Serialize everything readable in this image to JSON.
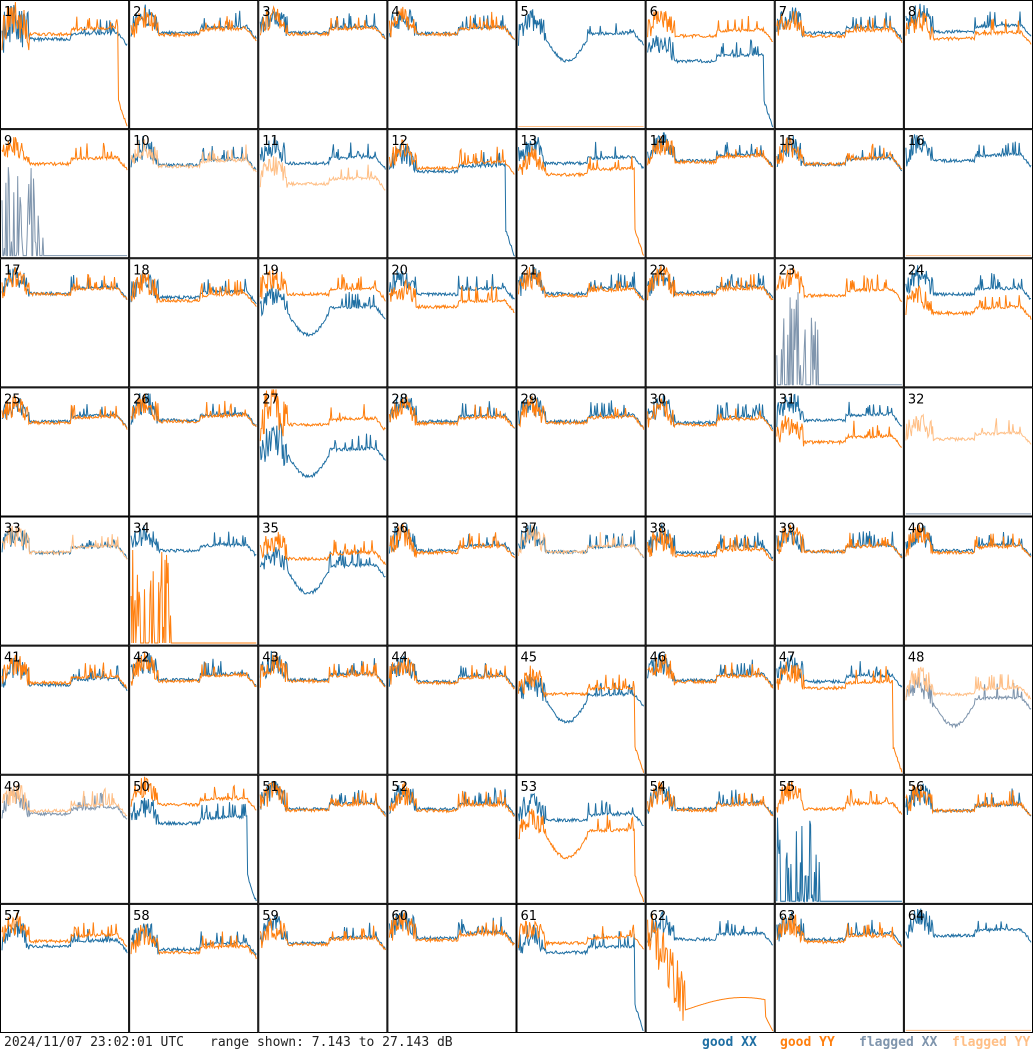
{
  "footer": {
    "timestamp": "2024/11/07 23:02:01 UTC",
    "range": "range shown: 7.143 to 27.143 dB"
  },
  "legend": [
    {
      "key": "good_xx",
      "label": "good XX",
      "color": "#1f6fa3"
    },
    {
      "key": "good_yy",
      "label": "good YY",
      "color": "#ff7f0e"
    },
    {
      "key": "flagged_xx",
      "label": "flagged XX",
      "color": "#7f95ad"
    },
    {
      "key": "flagged_yy",
      "label": "flagged YY",
      "color": "#ffbf86"
    }
  ],
  "chart_data": {
    "type": "line",
    "grid": {
      "rows": 8,
      "cols": 8
    },
    "ylim": [
      7.143,
      27.143
    ],
    "yunit": "dB",
    "panels": [
      {
        "label": "1",
        "xx": "good",
        "yy": "good",
        "xx_level": 22.0,
        "yy_level": 22.8,
        "yy_drop": true,
        "xx_drop": false,
        "front_noise": "high"
      },
      {
        "label": "2",
        "xx": "good",
        "yy": "good",
        "xx_level": 23.0,
        "yy_level": 22.7
      },
      {
        "label": "3",
        "xx": "good",
        "yy": "good",
        "xx_level": 23.0,
        "yy_level": 22.8
      },
      {
        "label": "4",
        "xx": "good",
        "yy": "good",
        "xx_level": 22.9,
        "yy_level": 22.8
      },
      {
        "label": "5",
        "xx": "good",
        "yy": "flagged",
        "xx_level": 22.0,
        "yy_level": 7.2,
        "xx_dip": true
      },
      {
        "label": "6",
        "xx": "good",
        "yy": "good",
        "xx_level": 18.5,
        "yy_level": 22.5,
        "xx_drop": true
      },
      {
        "label": "7",
        "xx": "good",
        "yy": "good",
        "xx_level": 23.0,
        "yy_level": 22.5
      },
      {
        "label": "8",
        "xx": "good",
        "yy": "good",
        "xx_level": 23.2,
        "yy_level": 22.1
      },
      {
        "label": "9",
        "xx": "flagged",
        "yy": "good",
        "xx_level": 7.5,
        "yy_level": 22.7,
        "xx_spikes": true
      },
      {
        "label": "10",
        "xx": "good",
        "yy": "flagged",
        "xx_level": 22.5,
        "yy_level": 22.3
      },
      {
        "label": "11",
        "xx": "good",
        "yy": "flagged",
        "xx_level": 22.8,
        "yy_level": 19.5
      },
      {
        "label": "12",
        "xx": "good",
        "yy": "good",
        "xx_level": 21.5,
        "yy_level": 22.0,
        "xx_drop": true
      },
      {
        "label": "13",
        "xx": "good",
        "yy": "good",
        "xx_level": 22.8,
        "yy_level": 21.0,
        "yy_drop": true
      },
      {
        "label": "14",
        "xx": "good",
        "yy": "good",
        "xx_level": 23.2,
        "yy_level": 23.0
      },
      {
        "label": "15",
        "xx": "good",
        "yy": "good",
        "xx_level": 22.6,
        "yy_level": 22.7
      },
      {
        "label": "16",
        "xx": "good",
        "yy": "flagged",
        "xx_level": 23.2,
        "yy_level": 7.2
      },
      {
        "label": "17",
        "xx": "good",
        "yy": "good",
        "xx_level": 22.6,
        "yy_level": 22.5
      },
      {
        "label": "18",
        "xx": "good",
        "yy": "good",
        "xx_level": 22.0,
        "yy_level": 21.5
      },
      {
        "label": "19",
        "xx": "good",
        "yy": "good",
        "xx_level": 19.5,
        "yy_level": 22.5,
        "xx_dip": true
      },
      {
        "label": "20",
        "xx": "good",
        "yy": "good",
        "xx_level": 22.5,
        "yy_level": 20.5
      },
      {
        "label": "21",
        "xx": "good",
        "yy": "good",
        "xx_level": 22.6,
        "yy_level": 22.3
      },
      {
        "label": "22",
        "xx": "good",
        "yy": "good",
        "xx_level": 22.8,
        "yy_level": 22.5
      },
      {
        "label": "23",
        "xx": "flagged",
        "yy": "good",
        "xx_level": 8.5,
        "yy_level": 22.3,
        "xx_spikes": true
      },
      {
        "label": "24",
        "xx": "good",
        "yy": "good",
        "xx_level": 22.5,
        "yy_level": 19.5
      },
      {
        "label": "25",
        "xx": "good",
        "yy": "good",
        "xx_level": 22.8,
        "yy_level": 22.6
      },
      {
        "label": "26",
        "xx": "good",
        "yy": "good",
        "xx_level": 23.0,
        "yy_level": 22.8
      },
      {
        "label": "27",
        "xx": "good",
        "yy": "good",
        "xx_level": 17.5,
        "yy_level": 22.3,
        "xx_dip": true,
        "front_noise": "high"
      },
      {
        "label": "28",
        "xx": "good",
        "yy": "good",
        "xx_level": 22.8,
        "yy_level": 22.5
      },
      {
        "label": "29",
        "xx": "good",
        "yy": "good",
        "xx_level": 22.8,
        "yy_level": 22.6
      },
      {
        "label": "30",
        "xx": "good",
        "yy": "good",
        "xx_level": 22.6,
        "yy_level": 22.3
      },
      {
        "label": "31",
        "xx": "good",
        "yy": "good",
        "xx_level": 23.0,
        "yy_level": 19.5
      },
      {
        "label": "32",
        "xx": "flagged",
        "yy": "flagged",
        "xx_level": 7.2,
        "yy_level": 20.0
      },
      {
        "label": "33",
        "xx": "good",
        "yy": "flagged",
        "xx_level": 22.5,
        "yy_level": 22.5
      },
      {
        "label": "34",
        "xx": "good",
        "yy": "good",
        "xx_level": 22.8,
        "yy_level": 7.5,
        "yy_spikes": true
      },
      {
        "label": "35",
        "xx": "good",
        "yy": "good",
        "xx_level": 19.5,
        "yy_level": 21.5,
        "xx_dip": true
      },
      {
        "label": "36",
        "xx": "good",
        "yy": "good",
        "xx_level": 22.8,
        "yy_level": 22.5
      },
      {
        "label": "37",
        "xx": "good",
        "yy": "flagged",
        "xx_level": 22.6,
        "yy_level": 22.6
      },
      {
        "label": "38",
        "xx": "good",
        "yy": "good",
        "xx_level": 22.5,
        "yy_level": 22.0
      },
      {
        "label": "39",
        "xx": "good",
        "yy": "good",
        "xx_level": 22.7,
        "yy_level": 22.6
      },
      {
        "label": "40",
        "xx": "good",
        "yy": "good",
        "xx_level": 22.8,
        "yy_level": 22.5
      },
      {
        "label": "41",
        "xx": "good",
        "yy": "good",
        "xx_level": 22.0,
        "yy_level": 22.3
      },
      {
        "label": "42",
        "xx": "good",
        "yy": "good",
        "xx_level": 22.8,
        "yy_level": 22.6
      },
      {
        "label": "43",
        "xx": "good",
        "yy": "good",
        "xx_level": 22.8,
        "yy_level": 22.6
      },
      {
        "label": "44",
        "xx": "good",
        "yy": "good",
        "xx_level": 22.5,
        "yy_level": 22.3
      },
      {
        "label": "45",
        "xx": "good",
        "yy": "good",
        "xx_level": 19.5,
        "yy_level": 20.5,
        "xx_dip": true,
        "yy_drop": true
      },
      {
        "label": "46",
        "xx": "good",
        "yy": "good",
        "xx_level": 22.7,
        "yy_level": 22.5
      },
      {
        "label": "47",
        "xx": "good",
        "yy": "good",
        "xx_level": 22.5,
        "yy_level": 21.5,
        "yy_drop": true
      },
      {
        "label": "48",
        "xx": "flagged",
        "yy": "flagged",
        "xx_level": 19.0,
        "yy_level": 20.5,
        "xx_dip": true
      },
      {
        "label": "49",
        "xx": "flagged",
        "yy": "flagged",
        "xx_level": 22.0,
        "yy_level": 22.5
      },
      {
        "label": "50",
        "xx": "good",
        "yy": "good",
        "xx_level": 20.5,
        "yy_level": 23.5,
        "xx_drop": true
      },
      {
        "label": "51",
        "xx": "good",
        "yy": "good",
        "xx_level": 22.8,
        "yy_level": 22.6
      },
      {
        "label": "52",
        "xx": "good",
        "yy": "good",
        "xx_level": 22.8,
        "yy_level": 22.5
      },
      {
        "label": "53",
        "xx": "good",
        "yy": "good",
        "xx_level": 21.0,
        "yy_level": 18.5,
        "yy_dip": true,
        "yy_drop": true
      },
      {
        "label": "54",
        "xx": "good",
        "yy": "good",
        "xx_level": 22.8,
        "yy_level": 22.6
      },
      {
        "label": "55",
        "xx": "good",
        "yy": "good",
        "xx_level": 8.0,
        "yy_level": 22.8,
        "xx_spikes": true
      },
      {
        "label": "56",
        "xx": "good",
        "yy": "good",
        "xx_level": 22.5,
        "yy_level": 22.5
      },
      {
        "label": "57",
        "xx": "good",
        "yy": "good",
        "xx_level": 21.5,
        "yy_level": 22.3
      },
      {
        "label": "58",
        "xx": "good",
        "yy": "good",
        "xx_level": 21.0,
        "yy_level": 20.5
      },
      {
        "label": "59",
        "xx": "good",
        "yy": "good",
        "xx_level": 22.0,
        "yy_level": 21.8
      },
      {
        "label": "60",
        "xx": "good",
        "yy": "good",
        "xx_level": 22.8,
        "yy_level": 22.5
      },
      {
        "label": "61",
        "xx": "good",
        "yy": "good",
        "xx_level": 20.5,
        "yy_level": 22.0,
        "xx_drop": true
      },
      {
        "label": "62",
        "xx": "good",
        "yy": "good",
        "xx_level": 22.6,
        "yy_level": 10.5,
        "yy_drop": true
      },
      {
        "label": "63",
        "xx": "good",
        "yy": "good",
        "xx_level": 22.6,
        "yy_level": 22.2
      },
      {
        "label": "64",
        "xx": "good",
        "yy": "flagged",
        "xx_level": 23.2,
        "yy_level": 7.2
      }
    ]
  }
}
